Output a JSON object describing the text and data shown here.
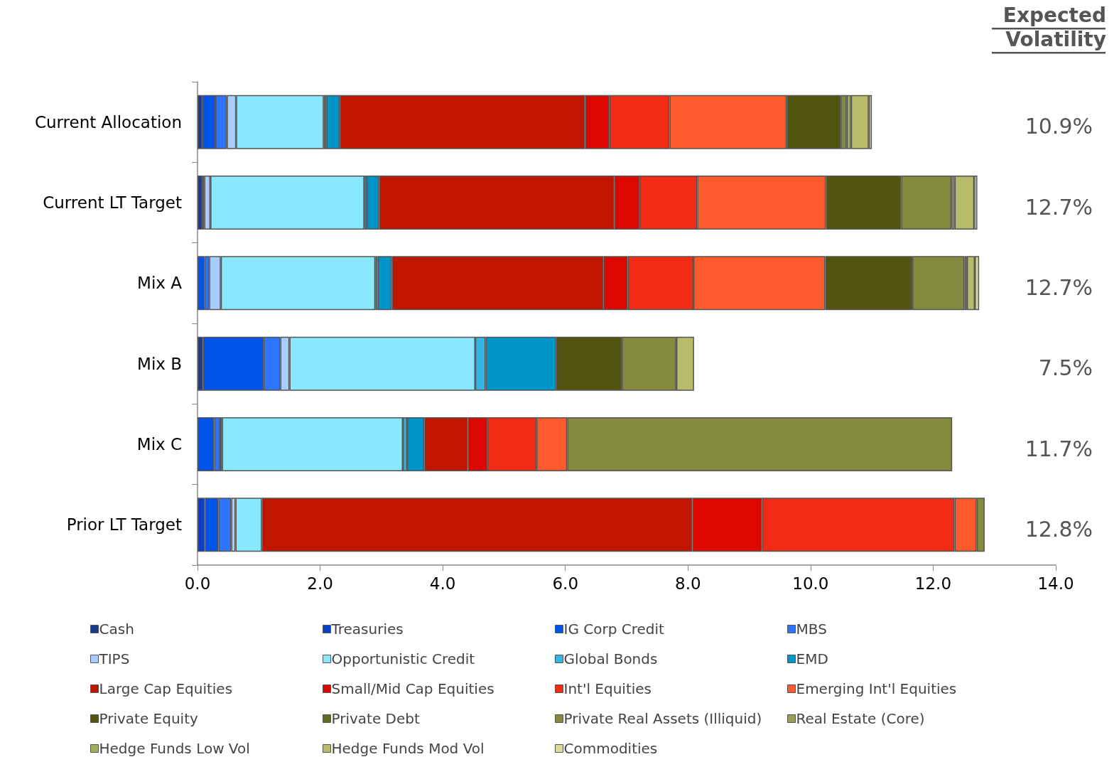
{
  "chart_data": {
    "type": "bar",
    "orientation": "horizontal",
    "stacked": true,
    "categories": [
      "Current Allocation",
      "Current LT Target",
      "Mix A",
      "Mix B",
      "Mix C",
      "Prior LT Target"
    ],
    "xlim": [
      0,
      14
    ],
    "xticks": [
      {
        "value": 0,
        "label": "0.0"
      },
      {
        "value": 2,
        "label": "2.0"
      },
      {
        "value": 4,
        "label": "4.0"
      },
      {
        "value": 6,
        "label": "6.0"
      },
      {
        "value": 8,
        "label": "8.0"
      },
      {
        "value": 10,
        "label": "10.0"
      },
      {
        "value": 12,
        "label": "12.0"
      },
      {
        "value": 14,
        "label": "14.0"
      }
    ],
    "grid": false,
    "legend": "bottom",
    "annotations": [
      "Expected Volatility",
      "10.9%",
      "12.7%",
      "12.7%",
      "7.5%",
      "11.7%",
      "12.8%"
    ],
    "series": [
      {
        "name": "Cash",
        "color": "#1c3a8c",
        "values": [
          0.08,
          0.08,
          null,
          0.09,
          null,
          null
        ]
      },
      {
        "name": "Treasuries",
        "color": "#0a3fc8",
        "values": [
          null,
          null,
          null,
          null,
          null,
          0.12
        ]
      },
      {
        "name": "IG Corp Credit",
        "color": "#0055e8",
        "values": [
          0.21,
          0.03,
          0.12,
          0.99,
          0.27,
          0.22
        ]
      },
      {
        "name": "MBS",
        "color": "#2f74ff",
        "values": [
          0.19,
          null,
          0.07,
          0.27,
          0.1,
          0.21
        ]
      },
      {
        "name": "TIPS",
        "color": "#a9cdfc",
        "values": [
          0.15,
          0.1,
          0.19,
          0.15,
          0.03,
          0.07
        ]
      },
      {
        "name": "Opportunistic Credit",
        "color": "#8ae8fe",
        "values": [
          1.43,
          2.51,
          2.52,
          3.03,
          2.95,
          0.43
        ]
      },
      {
        "name": "Global Bonds",
        "color": "#33b6e2",
        "values": [
          0.04,
          0.04,
          0.04,
          0.17,
          0.07,
          null
        ]
      },
      {
        "name": "EMD",
        "color": "#0095c8",
        "values": [
          0.22,
          0.2,
          0.23,
          1.15,
          0.28,
          null
        ]
      },
      {
        "name": "Large Cap Equities",
        "color": "#c01600",
        "values": [
          4.0,
          3.84,
          3.45,
          null,
          0.71,
          7.02
        ]
      },
      {
        "name": "Small/Mid Cap Equities",
        "color": "#dc0800",
        "values": [
          0.4,
          0.41,
          0.4,
          null,
          0.32,
          1.14
        ]
      },
      {
        "name": "Int'l Equities",
        "color": "#f22c14",
        "values": [
          0.98,
          0.94,
          1.07,
          null,
          0.8,
          3.14
        ]
      },
      {
        "name": "Emerging Int'l Equities",
        "color": "#ff5a2e",
        "values": [
          1.91,
          2.1,
          2.15,
          null,
          0.5,
          0.36
        ]
      },
      {
        "name": "Private Equity",
        "color": "#51550f",
        "values": [
          0.88,
          1.23,
          1.42,
          1.07,
          null,
          null
        ]
      },
      {
        "name": "Private Debt",
        "color": "#646b24",
        "values": [
          null,
          null,
          null,
          null,
          null,
          null
        ]
      },
      {
        "name": "Private Real Assets (Illiquid)",
        "color": "#848a3e",
        "values": [
          0.1,
          0.82,
          0.85,
          0.89,
          6.28,
          0.13
        ]
      },
      {
        "name": "Real Estate (Core)",
        "color": "#959e52",
        "values": [
          null,
          null,
          null,
          null,
          null,
          null
        ]
      },
      {
        "name": "Hedge Funds Low Vol",
        "color": "#a3ad5e",
        "values": [
          0.07,
          0.05,
          0.04,
          null,
          null,
          null
        ]
      },
      {
        "name": "Hedge Funds Mod Vol",
        "color": "#b6bc6a",
        "values": [
          0.29,
          0.32,
          0.13,
          0.29,
          null,
          null
        ]
      },
      {
        "name": "Commodities",
        "color": "#d9dc9b",
        "values": [
          0.05,
          0.05,
          0.07,
          null,
          null,
          null
        ]
      }
    ]
  }
}
